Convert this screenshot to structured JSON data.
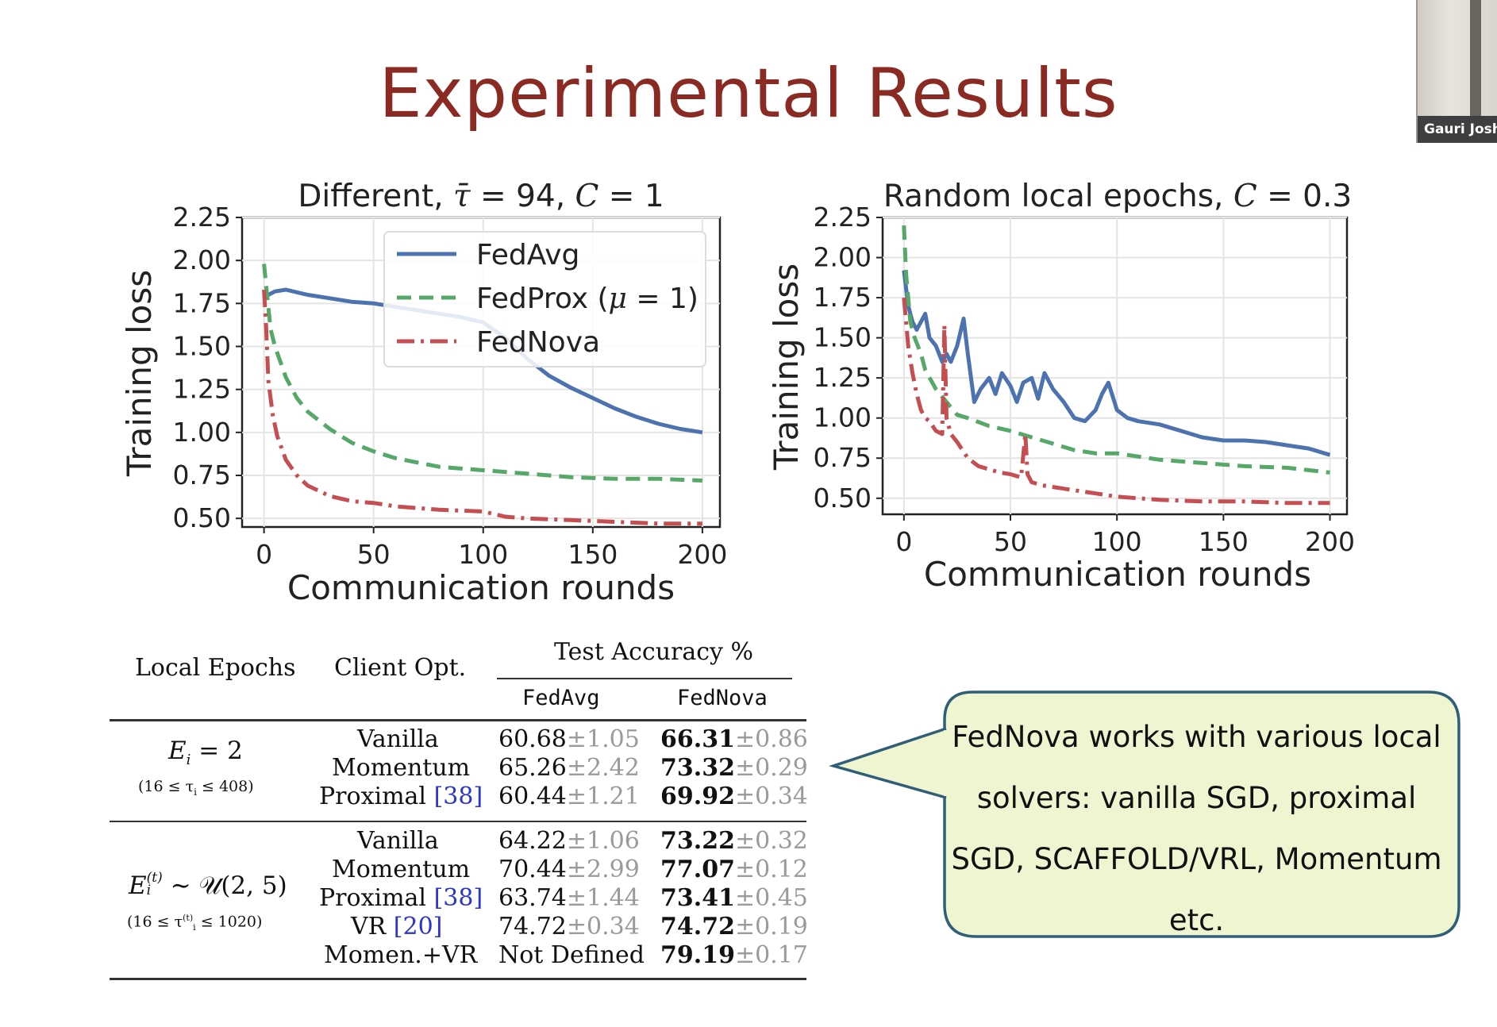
{
  "slide": {
    "title": "Experimental Results",
    "participant_name": "Gauri Josh"
  },
  "chart_data": [
    {
      "type": "line",
      "title": "Different, τ̄ = 94, C = 1",
      "xlabel": "Communication rounds",
      "ylabel": "Training loss",
      "xlim": [
        -10,
        208
      ],
      "ylim": [
        0.45,
        2.25
      ],
      "xticks": [
        "0",
        "50",
        "100",
        "150",
        "200"
      ],
      "yticks": [
        "0.50",
        "0.75",
        "1.00",
        "1.25",
        "1.50",
        "1.75",
        "2.00",
        "2.25"
      ],
      "grid": true,
      "legend": "top-right",
      "series": [
        {
          "name": "FedAvg",
          "color": "#4c72b0",
          "style": "solid",
          "x": [
            0,
            2,
            5,
            10,
            20,
            30,
            40,
            50,
            60,
            70,
            80,
            90,
            100,
            110,
            120,
            130,
            140,
            150,
            160,
            170,
            180,
            190,
            200
          ],
          "y": [
            1.82,
            1.8,
            1.82,
            1.83,
            1.8,
            1.78,
            1.76,
            1.75,
            1.73,
            1.71,
            1.69,
            1.67,
            1.64,
            1.55,
            1.43,
            1.33,
            1.26,
            1.2,
            1.14,
            1.09,
            1.05,
            1.02,
            1.0
          ]
        },
        {
          "name": "FedProx (μ = 1)",
          "color": "#55a868",
          "style": "dashed",
          "x": [
            0,
            1,
            3,
            5,
            10,
            15,
            20,
            30,
            40,
            50,
            60,
            80,
            100,
            120,
            140,
            160,
            180,
            200
          ],
          "y": [
            1.98,
            1.85,
            1.6,
            1.5,
            1.32,
            1.2,
            1.12,
            1.02,
            0.94,
            0.89,
            0.85,
            0.8,
            0.78,
            0.76,
            0.74,
            0.73,
            0.73,
            0.72
          ]
        },
        {
          "name": "FedNova",
          "color": "#c44e52",
          "style": "dashdot",
          "x": [
            0,
            1,
            2,
            4,
            6,
            10,
            15,
            20,
            30,
            40,
            50,
            60,
            80,
            100,
            110,
            120,
            140,
            160,
            180,
            200
          ],
          "y": [
            1.83,
            1.6,
            1.3,
            1.1,
            0.98,
            0.84,
            0.75,
            0.69,
            0.63,
            0.6,
            0.59,
            0.57,
            0.55,
            0.54,
            0.51,
            0.5,
            0.49,
            0.48,
            0.47,
            0.47
          ]
        }
      ]
    },
    {
      "type": "line",
      "title": "Random local epochs, C = 0.3",
      "xlabel": "Communication rounds",
      "ylabel": "Training loss",
      "xlim": [
        -10,
        208
      ],
      "ylim": [
        0.4,
        2.25
      ],
      "xticks": [
        "0",
        "50",
        "100",
        "150",
        "200"
      ],
      "yticks": [
        "0.50",
        "0.75",
        "1.00",
        "1.25",
        "1.50",
        "1.75",
        "2.00",
        "2.25"
      ],
      "grid": true,
      "series": [
        {
          "name": "FedAvg",
          "color": "#4c72b0",
          "style": "solid",
          "x": [
            0,
            2,
            4,
            6,
            8,
            10,
            12,
            15,
            18,
            20,
            22,
            25,
            28,
            30,
            33,
            36,
            40,
            43,
            46,
            50,
            53,
            56,
            60,
            63,
            66,
            70,
            75,
            80,
            85,
            90,
            93,
            96,
            100,
            105,
            110,
            120,
            130,
            140,
            150,
            160,
            170,
            180,
            190,
            200
          ],
          "y": [
            1.92,
            1.7,
            1.6,
            1.55,
            1.6,
            1.65,
            1.5,
            1.45,
            1.35,
            1.4,
            1.35,
            1.45,
            1.62,
            1.4,
            1.1,
            1.18,
            1.25,
            1.15,
            1.28,
            1.2,
            1.1,
            1.22,
            1.25,
            1.12,
            1.28,
            1.18,
            1.1,
            1.0,
            0.98,
            1.05,
            1.15,
            1.22,
            1.05,
            1.0,
            0.98,
            0.96,
            0.92,
            0.88,
            0.86,
            0.86,
            0.85,
            0.83,
            0.81,
            0.77
          ]
        },
        {
          "name": "FedProx (μ = 1)",
          "color": "#55a868",
          "style": "dashed",
          "x": [
            0,
            1,
            3,
            5,
            8,
            10,
            15,
            20,
            25,
            30,
            40,
            50,
            60,
            70,
            80,
            90,
            100,
            120,
            140,
            160,
            180,
            200
          ],
          "y": [
            2.2,
            1.9,
            1.6,
            1.5,
            1.4,
            1.3,
            1.18,
            1.1,
            1.02,
            1.0,
            0.95,
            0.92,
            0.88,
            0.84,
            0.8,
            0.78,
            0.78,
            0.74,
            0.72,
            0.7,
            0.69,
            0.66
          ]
        },
        {
          "name": "FedNova",
          "color": "#c44e52",
          "style": "dashdot",
          "x": [
            0,
            2,
            4,
            6,
            8,
            10,
            12,
            15,
            18,
            19,
            20,
            22,
            25,
            30,
            35,
            40,
            45,
            50,
            55,
            57,
            58,
            60,
            65,
            70,
            75,
            80,
            85,
            90,
            95,
            100,
            110,
            120,
            140,
            160,
            180,
            200
          ],
          "y": [
            1.75,
            1.45,
            1.28,
            1.15,
            1.05,
            1.0,
            0.98,
            0.92,
            0.9,
            1.58,
            1.0,
            0.9,
            0.85,
            0.75,
            0.7,
            0.68,
            0.66,
            0.65,
            0.63,
            0.9,
            0.65,
            0.6,
            0.58,
            0.57,
            0.56,
            0.55,
            0.54,
            0.53,
            0.52,
            0.51,
            0.5,
            0.49,
            0.48,
            0.48,
            0.47,
            0.47
          ]
        }
      ]
    }
  ],
  "table": {
    "col_local_epochs": "Local Epochs",
    "col_client_opt": "Client Opt.",
    "col_test_acc": "Test Accuracy %",
    "col_fedavg": "FedAvg",
    "col_fednova": "FedNova",
    "group1": {
      "epochs": "E",
      "epochs_sub": "i",
      "epochs_rhs": " = 2",
      "range": "(16 ≤ τ",
      "range_sub": "i",
      "range_end": " ≤ 408)",
      "rows": [
        {
          "opt": "Vanilla",
          "cite": "",
          "fedavg": "60.68",
          "fedavg_pm": "±1.05",
          "fednova": "66.31",
          "fednova_pm": "±0.86"
        },
        {
          "opt": "Momentum",
          "cite": "",
          "fedavg": "65.26",
          "fedavg_pm": "±2.42",
          "fednova": "73.32",
          "fednova_pm": "±0.29"
        },
        {
          "opt": "Proximal ",
          "cite": "[38]",
          "fedavg": "60.44",
          "fedavg_pm": "±1.21",
          "fednova": "69.92",
          "fednova_pm": "±0.34"
        }
      ]
    },
    "group2": {
      "epochs": "E",
      "epochs_sup": "(t)",
      "epochs_sub": "i",
      "epochs_rhs": " ∼ 𝒰(2, 5)",
      "range": "(16 ≤ τ",
      "range_sup": "(t)",
      "range_sub": "i",
      "range_end": " ≤ 1020)",
      "rows": [
        {
          "opt": "Vanilla",
          "cite": "",
          "fedavg": "64.22",
          "fedavg_pm": "±1.06",
          "fednova": "73.22",
          "fednova_pm": "±0.32"
        },
        {
          "opt": "Momentum",
          "cite": "",
          "fedavg": "70.44",
          "fedavg_pm": "±2.99",
          "fednova": "77.07",
          "fednova_pm": "±0.12"
        },
        {
          "opt": "Proximal ",
          "cite": "[38]",
          "fedavg": "63.74",
          "fedavg_pm": "±1.44",
          "fednova": "73.41",
          "fednova_pm": "±0.45"
        },
        {
          "opt": "VR ",
          "cite": "[20]",
          "fedavg": "74.72",
          "fedavg_pm": "±0.34",
          "fednova": "74.72",
          "fednova_pm": "±0.19"
        },
        {
          "opt": "Momen.+VR",
          "cite": "",
          "fedavg": "Not Defined",
          "fedavg_pm": "",
          "fednova": "79.19",
          "fednova_pm": "±0.17"
        }
      ]
    }
  },
  "callout": {
    "text": "FedNova works with various local solvers: vanilla SGD, proximal SGD, SCAFFOLD/VRL, Momentum etc.",
    "fill_color": "#eef5d0",
    "border_color": "#2f5f78"
  }
}
